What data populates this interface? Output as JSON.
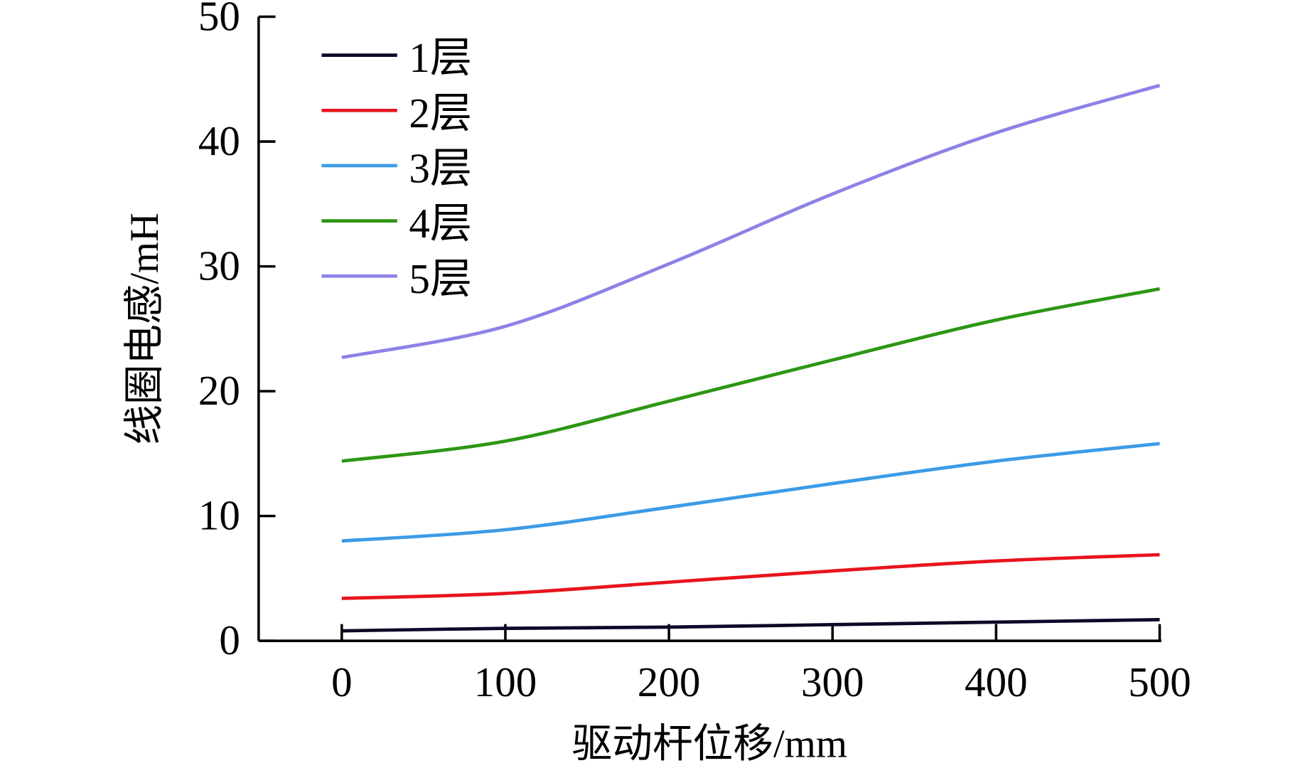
{
  "chart_data": {
    "type": "line",
    "title": "",
    "xlabel": "驱动杆位移/mm",
    "ylabel": "线圈电感/mH",
    "xlim": [
      0,
      500
    ],
    "ylim": [
      0,
      50
    ],
    "xticks": [
      0,
      100,
      200,
      300,
      400,
      500
    ],
    "yticks": [
      0,
      10,
      20,
      30,
      40,
      50
    ],
    "xtick_labels": [
      "0",
      "100",
      "200",
      "300",
      "400",
      "500"
    ],
    "ytick_labels": [
      "0",
      "10",
      "20",
      "30",
      "40",
      "50"
    ],
    "grid": false,
    "legend_position": "top-left",
    "x": [
      0,
      100,
      200,
      300,
      400,
      500
    ],
    "series": [
      {
        "name": "1层",
        "color": "#0a0a28",
        "values": [
          0.8,
          1.0,
          1.1,
          1.3,
          1.5,
          1.7
        ]
      },
      {
        "name": "2层",
        "color": "#e8141e",
        "values": [
          3.4,
          3.8,
          4.7,
          5.6,
          6.4,
          6.9
        ]
      },
      {
        "name": "3层",
        "color": "#3c9be6",
        "values": [
          8.0,
          8.9,
          10.7,
          12.6,
          14.4,
          15.8
        ]
      },
      {
        "name": "4层",
        "color": "#2d9614",
        "values": [
          14.4,
          16.0,
          19.2,
          22.5,
          25.7,
          28.2
        ]
      },
      {
        "name": "5层",
        "color": "#8c82e6",
        "values": [
          22.7,
          25.2,
          30.2,
          35.8,
          40.7,
          44.5
        ]
      }
    ]
  }
}
